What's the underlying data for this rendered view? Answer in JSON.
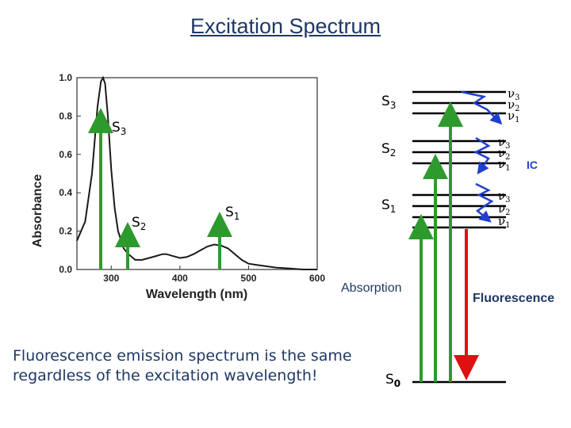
{
  "title": "Excitation Spectrum",
  "chart_data": {
    "type": "line",
    "xlabel": "Wavelength (nm)",
    "ylabel": "Absorbance",
    "xlim": [
      250,
      600
    ],
    "ylim": [
      0.0,
      1.0
    ],
    "x_ticks": [
      "300",
      "400",
      "500",
      "600"
    ],
    "y_ticks": [
      "0.0",
      "0.2",
      "0.4",
      "0.6",
      "0.8",
      "1.0"
    ],
    "series": [
      {
        "name": "absorbance",
        "x": [
          250,
          262,
          272,
          280,
          285,
          288,
          291,
          295,
          300,
          305,
          310,
          318,
          325,
          335,
          345,
          355,
          365,
          375,
          380,
          390,
          400,
          410,
          420,
          430,
          440,
          450,
          460,
          470,
          480,
          490,
          500,
          520,
          540,
          560,
          580,
          600
        ],
        "y": [
          0.15,
          0.25,
          0.5,
          0.85,
          0.98,
          1.0,
          0.97,
          0.8,
          0.52,
          0.32,
          0.2,
          0.11,
          0.08,
          0.05,
          0.05,
          0.06,
          0.07,
          0.08,
          0.08,
          0.07,
          0.06,
          0.065,
          0.08,
          0.1,
          0.12,
          0.13,
          0.125,
          0.11,
          0.08,
          0.05,
          0.03,
          0.02,
          0.01,
          0.005,
          0.0,
          0.0
        ]
      }
    ],
    "annotations": {
      "s3": {
        "main": "S",
        "sub": "3"
      },
      "s2": {
        "main": "S",
        "sub": "2"
      },
      "s1": {
        "main": "S",
        "sub": "1"
      }
    }
  },
  "diagram": {
    "states": {
      "s3": {
        "main": "S",
        "sub": "3"
      },
      "s2": {
        "main": "S",
        "sub": "2"
      },
      "s1": {
        "main": "S",
        "sub": "1"
      },
      "s0": {
        "main": "S",
        "sub": "0"
      }
    },
    "vib_levels": [
      {
        "top": {
          "main": "ν",
          "sub": "3"
        },
        "mid": {
          "main": "ν",
          "sub": "2"
        },
        "bot": {
          "main": "ν",
          "sub": "1"
        }
      },
      {
        "top": {
          "main": "ν",
          "sub": "3"
        },
        "mid": {
          "main": "ν",
          "sub": "2"
        },
        "bot": {
          "main": "ν",
          "sub": "1"
        }
      },
      {
        "top": {
          "main": "ν",
          "sub": "3"
        },
        "mid": {
          "main": "ν",
          "sub": "2"
        },
        "bot": {
          "main": "ν",
          "sub": "1"
        }
      }
    ],
    "ic_label": "IC",
    "absorption_label": "Absorption",
    "fluorescence_label": "Fluorescence",
    "colors": {
      "absorption": "#2e9a2e",
      "fluorescence": "#e01010",
      "ic": "#1f3fd0",
      "text": "#1f3864"
    }
  },
  "note": {
    "line1": "Fluorescence emission spectrum is the same",
    "line2": "regardless of the excitation wavelength!"
  }
}
